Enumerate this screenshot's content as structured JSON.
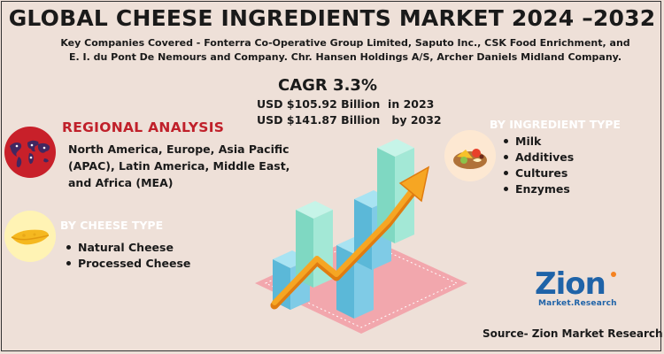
{
  "title": "GLOBAL CHEESE INGREDIENTS MARKET 2024 –2032",
  "companies": {
    "line1": "Key Companies Covered - Fonterra Co-Operative Group Limited, Saputo Inc., CSK Food Enrichment, and",
    "line2": "E. I. du Pont De Nemours and Company.  Chr. Hansen Holdings A/S, Archer Daniels Midland Company."
  },
  "cagr": "CAGR 3.3%",
  "market_values": [
    {
      "value": "USD $105.92 Billion",
      "year": "in 2023"
    },
    {
      "value": "USD $141.87 Billion",
      "year": "by 2032"
    }
  ],
  "regional": {
    "heading": "REGIONAL ANALYSIS",
    "text": "North America, Europe, Asia Pacific (APAC), Latin America, Middle East, and Africa (MEA)",
    "icon": "world-map-icon"
  },
  "cheese_type": {
    "heading": "BY CHEESE TYPE",
    "items": [
      "Natural Cheese",
      "Processed Cheese"
    ],
    "icon": "cheese-slice-icon"
  },
  "ingredient_type": {
    "heading": "BY INGREDIENT TYPE",
    "items": [
      "Milk",
      "Additives",
      "Cultures",
      "Enzymes"
    ],
    "icon": "food-plate-icon"
  },
  "logo": {
    "main": "Zion",
    "sub": "Market.Research"
  },
  "source": "Source- Zion Market Research",
  "colors": {
    "background": "#eee0d8",
    "heading_red": "#c0202a",
    "bar_teal": "#8ee4cf",
    "bar_blue": "#5bb8d8",
    "arrow_orange": "#f6a623",
    "brand_blue": "#1f63a8"
  }
}
